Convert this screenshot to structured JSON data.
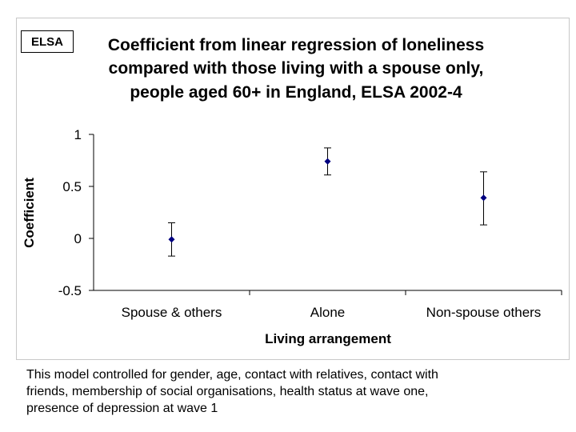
{
  "badge": "ELSA",
  "chart_data": {
    "type": "scatter",
    "title_lines": [
      "Coefficient from linear regression of loneliness",
      "compared with those living with a spouse only,",
      "people aged 60+ in England, ELSA 2002-4"
    ],
    "xlabel": "Living arrangement",
    "ylabel": "Coefficient",
    "categories": [
      "Spouse & others",
      "Alone",
      "Non-spouse others"
    ],
    "values": [
      -0.01,
      0.74,
      0.39
    ],
    "lower": [
      -0.17,
      0.61,
      0.13
    ],
    "upper": [
      0.15,
      0.87,
      0.64
    ],
    "ylim": [
      -0.5,
      1
    ],
    "yticks": [
      1,
      0.5,
      0,
      -0.5
    ],
    "ytick_labels": [
      "1",
      "0.5",
      "0",
      "-0.5"
    ],
    "grid": false,
    "marker_color": "#000080"
  },
  "footnote_lines": [
    "This model controlled for gender, age, contact with relatives, contact with",
    "friends, membership of social organisations, health status at wave one,",
    "presence of depression at wave 1"
  ]
}
